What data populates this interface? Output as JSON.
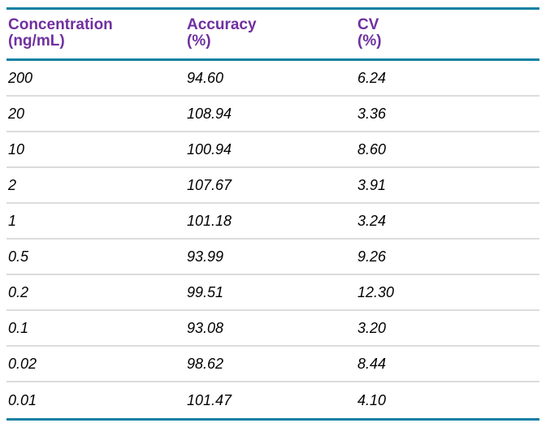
{
  "table": {
    "columns": [
      {
        "id": "concentration",
        "line1": "Concentration",
        "line2": "(ng/mL)"
      },
      {
        "id": "accuracy",
        "line1": "Accuracy",
        "line2": "(%)"
      },
      {
        "id": "cv",
        "line1": "CV",
        "line2": "(%)"
      }
    ],
    "rows": [
      [
        "200",
        "94.60",
        "6.24"
      ],
      [
        "20",
        "108.94",
        "3.36"
      ],
      [
        "10",
        "100.94",
        "8.60"
      ],
      [
        "2",
        "107.67",
        "3.91"
      ],
      [
        "1",
        "101.18",
        "3.24"
      ],
      [
        "0.5",
        "93.99",
        "9.26"
      ],
      [
        "0.2",
        "99.51",
        "12.30"
      ],
      [
        "0.1",
        "93.08",
        "3.20"
      ],
      [
        "0.02",
        "98.62",
        "8.44"
      ],
      [
        "0.01",
        "101.47",
        "4.10"
      ]
    ],
    "style": {
      "header_text_color": "#7030A0",
      "rule_color": "#1180A3",
      "row_divider_color": "#DCDCDC",
      "body_text_color": "#000000",
      "background": "#FFFFFF"
    }
  },
  "chart_data": {
    "type": "table",
    "title": "",
    "columns": [
      "Concentration (ng/mL)",
      "Accuracy (%)",
      "CV (%)"
    ],
    "rows": [
      [
        200,
        94.6,
        6.24
      ],
      [
        20,
        108.94,
        3.36
      ],
      [
        10,
        100.94,
        8.6
      ],
      [
        2,
        107.67,
        3.91
      ],
      [
        1,
        101.18,
        3.24
      ],
      [
        0.5,
        93.99,
        9.26
      ],
      [
        0.2,
        99.51,
        12.3
      ],
      [
        0.1,
        93.08,
        3.2
      ],
      [
        0.02,
        98.62,
        8.44
      ],
      [
        0.01,
        101.47,
        4.1
      ]
    ]
  }
}
